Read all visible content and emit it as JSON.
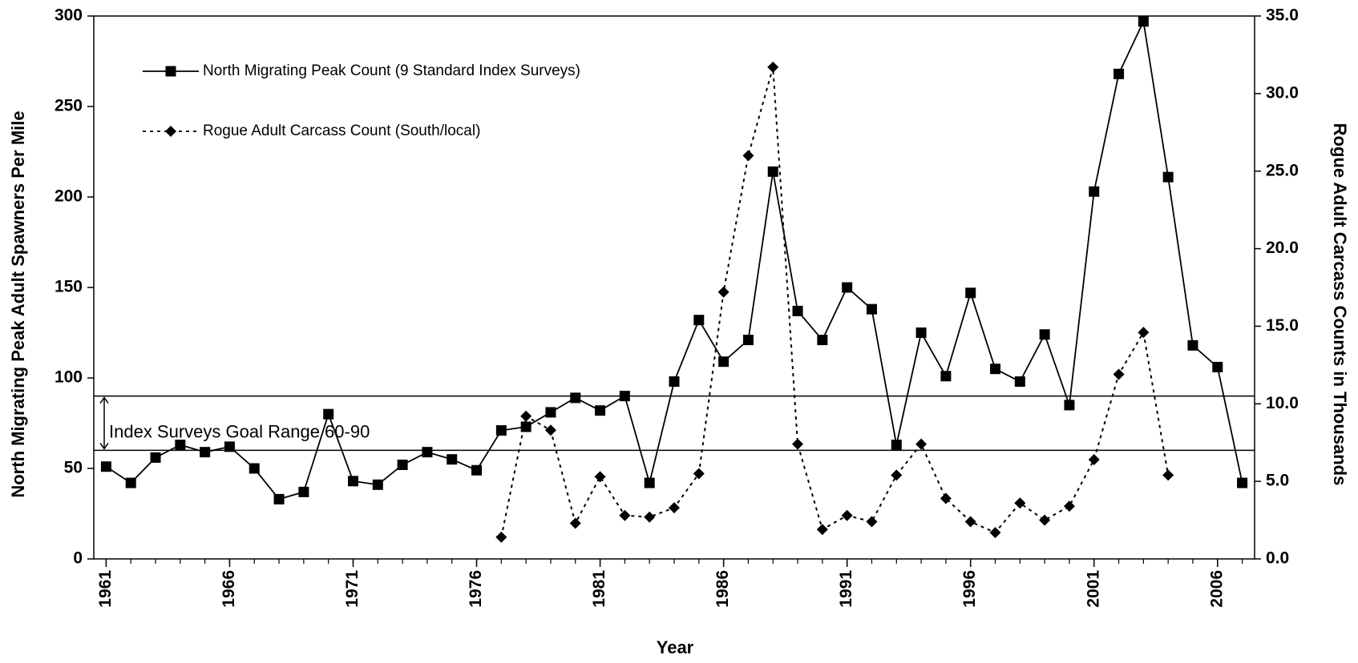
{
  "chart_data": {
    "type": "line",
    "x_label": "Year",
    "y_label": "North Migrating Peak Adult Spawners Per Mile",
    "y2_label": "Rogue Adult Carcass Counts in Thousands",
    "x": [
      1961,
      1962,
      1963,
      1964,
      1965,
      1966,
      1967,
      1968,
      1969,
      1970,
      1971,
      1972,
      1973,
      1974,
      1975,
      1976,
      1977,
      1978,
      1979,
      1980,
      1981,
      1982,
      1983,
      1984,
      1985,
      1986,
      1987,
      1988,
      1989,
      1990,
      1991,
      1992,
      1993,
      1994,
      1995,
      1996,
      1997,
      1998,
      1999,
      2000,
      2001,
      2002,
      2003,
      2004,
      2005,
      2006,
      2007
    ],
    "series": [
      {
        "name": "North Migrating Peak Count (9 Standard Index Surveys)",
        "color": "#000000",
        "marker": "square",
        "dashed": false,
        "values": [
          51,
          42,
          56,
          63,
          59,
          62,
          50,
          33,
          37,
          80,
          43,
          41,
          52,
          59,
          55,
          49,
          71,
          73,
          81,
          89,
          82,
          90,
          42,
          98,
          132,
          109,
          121,
          214,
          137,
          121,
          150,
          138,
          63,
          125,
          101,
          147,
          105,
          98,
          124,
          85,
          203,
          268,
          297,
          211,
          118,
          106,
          42
        ]
      },
      {
        "name": "Rogue Adult Carcass Count (South/local)",
        "color": "#000000",
        "marker": "diamond",
        "dashed": true,
        "axis": "y2",
        "values": [
          null,
          null,
          null,
          null,
          null,
          null,
          null,
          null,
          null,
          null,
          null,
          null,
          null,
          null,
          null,
          null,
          1.4,
          9.2,
          8.3,
          2.3,
          5.3,
          2.8,
          2.7,
          3.3,
          5.5,
          17.2,
          26.0,
          31.7,
          7.4,
          1.9,
          2.8,
          2.4,
          5.4,
          7.4,
          3.9,
          2.4,
          1.7,
          3.6,
          2.5,
          3.4,
          6.4,
          11.9,
          14.6,
          5.4,
          null,
          null,
          null
        ]
      }
    ],
    "xlim": [
      1960.5,
      2007.5
    ],
    "xticks": [
      1961,
      1966,
      1971,
      1976,
      1981,
      1986,
      1991,
      1996,
      2001,
      2006
    ],
    "ylim": [
      0,
      300
    ],
    "yticks": [
      0,
      50,
      100,
      150,
      200,
      250,
      300
    ],
    "y2lim": [
      0,
      35
    ],
    "y2ticks": [
      {
        "value": 0,
        "label": "0.0"
      },
      {
        "value": 5,
        "label": "5.0"
      },
      {
        "value": 10,
        "label": "10.0"
      },
      {
        "value": 15,
        "label": "15.0"
      },
      {
        "value": 20,
        "label": "20.0"
      },
      {
        "value": 25,
        "label": "25.0"
      },
      {
        "value": 30,
        "label": "30.0"
      },
      {
        "value": 35,
        "label": "35.0"
      }
    ],
    "goal_range": [
      60,
      90
    ],
    "annotation": "Index Surveys Goal Range 60-90",
    "legend": "top-left"
  }
}
